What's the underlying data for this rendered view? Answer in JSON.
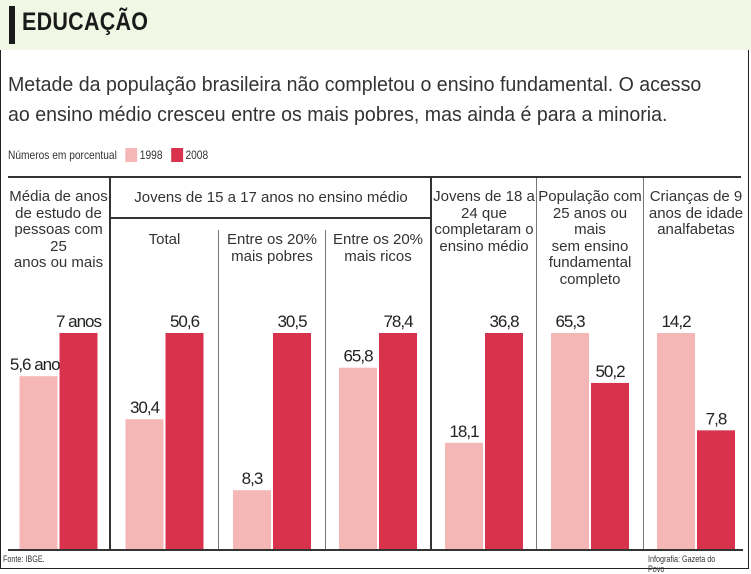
{
  "header": {
    "title": "EDUCAÇÃO"
  },
  "subtitle": {
    "line1": "Metade da população brasileira não completou o ensino fundamental. O acesso",
    "line2": "ao ensino médio cresceu entre os mais pobres, mas ainda é para a minoria."
  },
  "legend": {
    "note": "Números em porcentual",
    "items": [
      {
        "label": "1998",
        "color": "#f5b7b5"
      },
      {
        "label": "2008",
        "color": "#d9324d"
      }
    ]
  },
  "group_title": "Jovens de 15 a 17 anos no ensino médio",
  "footer": {
    "source": "Fonte: IBGE.",
    "credit": "Infografia: Gazeta do Povo"
  },
  "colors": {
    "c1998": "#f5b7b5",
    "c2008": "#d9324d",
    "header_bg": "#f1f7e5"
  },
  "chart_data": [
    {
      "type": "bar",
      "title": [
        "Média de anos",
        "de estudo de",
        "pessoas com 25",
        "anos ou mais"
      ],
      "categories": [
        "1998",
        "2008"
      ],
      "values": [
        5.6,
        7
      ],
      "labels": [
        "5,6 anos",
        "7 anos"
      ]
    },
    {
      "type": "bar",
      "title": [
        "Total"
      ],
      "categories": [
        "1998",
        "2008"
      ],
      "values": [
        30.4,
        50.6
      ],
      "labels": [
        "30,4",
        "50,6"
      ]
    },
    {
      "type": "bar",
      "title": [
        "Entre os 20%",
        "mais pobres"
      ],
      "categories": [
        "1998",
        "2008"
      ],
      "values": [
        8.3,
        30.5
      ],
      "labels": [
        "8,3",
        "30,5"
      ]
    },
    {
      "type": "bar",
      "title": [
        "Entre os 20%",
        "mais ricos"
      ],
      "categories": [
        "1998",
        "2008"
      ],
      "values": [
        65.8,
        78.4
      ],
      "labels": [
        "65,8",
        "78,4"
      ]
    },
    {
      "type": "bar",
      "title": [
        "Jovens de 18 a",
        "24 que",
        "completaram o",
        "ensino médio"
      ],
      "categories": [
        "1998",
        "2008"
      ],
      "values": [
        18.1,
        36.8
      ],
      "labels": [
        "18,1",
        "36,8"
      ]
    },
    {
      "type": "bar",
      "title": [
        "População com",
        "25 anos ou mais",
        "sem ensino",
        "fundamental",
        "completo"
      ],
      "categories": [
        "1998",
        "2008"
      ],
      "values": [
        65.3,
        50.2
      ],
      "labels": [
        "65,3",
        "50,2"
      ]
    },
    {
      "type": "bar",
      "title": [
        "Crianças de 9",
        "anos de idade",
        "analfabetas"
      ],
      "categories": [
        "1998",
        "2008"
      ],
      "values": [
        14.2,
        7.8
      ],
      "labels": [
        "14,2",
        "7,8"
      ]
    }
  ]
}
